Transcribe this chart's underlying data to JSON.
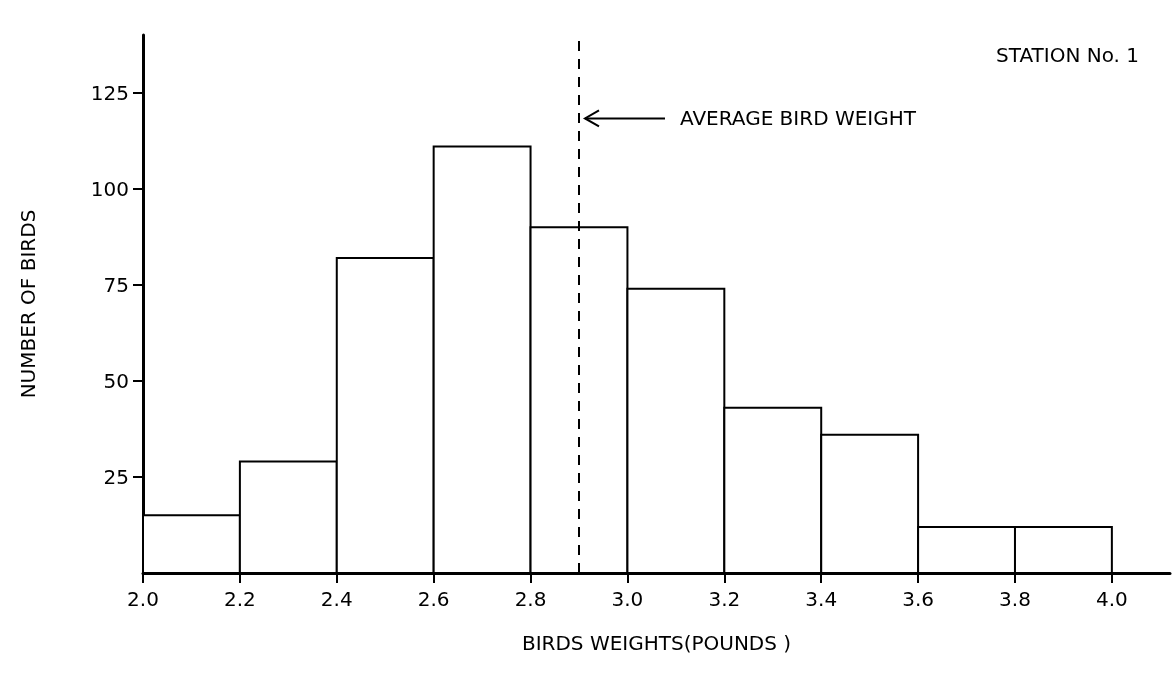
{
  "chart_data": {
    "type": "histogram",
    "title": "STATION No. 1",
    "xlabel": "BIRDS WEIGHTS(POUNDS )",
    "ylabel": "NUMBER OF BIRDS",
    "bins": [
      2.0,
      2.2,
      2.4,
      2.6,
      2.8,
      3.0,
      3.2,
      3.4,
      3.6,
      3.8,
      4.0
    ],
    "values": [
      15,
      29,
      82,
      111,
      90,
      74,
      43,
      36,
      12,
      12
    ],
    "color": "#ffffff",
    "xlim": [
      2.0,
      4.12
    ],
    "ylim": [
      0,
      140
    ],
    "xticks": [
      {
        "value": 2.0,
        "label": "2.0"
      },
      {
        "value": 2.2,
        "label": "2.2"
      },
      {
        "value": 2.4,
        "label": "2.4"
      },
      {
        "value": 2.6,
        "label": "2.6"
      },
      {
        "value": 2.8,
        "label": "2.8"
      },
      {
        "value": 3.0,
        "label": "3.0"
      },
      {
        "value": 3.2,
        "label": "3.2"
      },
      {
        "value": 3.4,
        "label": "3.4"
      },
      {
        "value": 3.6,
        "label": "3.6"
      },
      {
        "value": 3.8,
        "label": "3.8"
      },
      {
        "value": 4.0,
        "label": "4.0"
      }
    ],
    "yticks": [
      25,
      50,
      75,
      100,
      125
    ],
    "ref_lines": [
      {
        "axis": "x",
        "value": 2.9,
        "label": "AVERAGE BIRD WEIGHT",
        "line_style": "dashed",
        "color": "#000000"
      }
    ],
    "grid": false,
    "legend": false
  }
}
